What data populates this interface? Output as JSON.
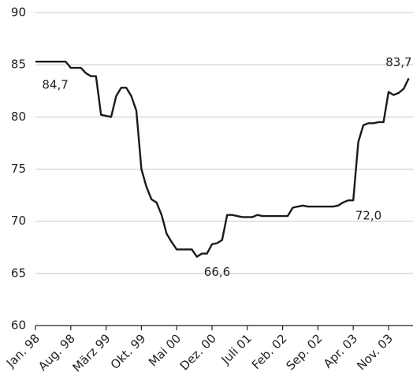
{
  "chart_data": {
    "type": "line",
    "categories": [
      "Jan. 98",
      null,
      null,
      null,
      null,
      null,
      null,
      "Aug. 98",
      null,
      null,
      null,
      null,
      null,
      null,
      "März 99",
      null,
      null,
      null,
      null,
      null,
      null,
      "Okt. 99",
      null,
      null,
      null,
      null,
      null,
      null,
      "Mai 00",
      null,
      null,
      null,
      null,
      null,
      null,
      "Dez. 00",
      null,
      null,
      null,
      null,
      null,
      null,
      "Juli 01",
      null,
      null,
      null,
      null,
      null,
      null,
      "Feb. 02",
      null,
      null,
      null,
      null,
      null,
      null,
      "Sep. 02",
      null,
      null,
      null,
      null,
      null,
      null,
      "Apr. 03",
      null,
      null,
      null,
      null,
      null,
      null,
      "Nov. 03",
      null,
      null,
      null,
      null
    ],
    "values": [
      85.3,
      85.3,
      85.3,
      85.3,
      85.3,
      85.3,
      85.3,
      84.7,
      84.7,
      84.7,
      84.2,
      83.9,
      83.9,
      80.2,
      80.1,
      80.0,
      82.0,
      82.8,
      82.8,
      82.0,
      80.6,
      75.0,
      73.3,
      72.1,
      71.8,
      70.6,
      68.8,
      68.0,
      67.3,
      67.3,
      67.3,
      67.3,
      66.6,
      66.9,
      66.9,
      67.8,
      67.9,
      68.2,
      70.6,
      70.6,
      70.5,
      70.4,
      70.4,
      70.4,
      70.6,
      70.5,
      70.5,
      70.5,
      70.5,
      70.5,
      70.5,
      71.3,
      71.4,
      71.5,
      71.4,
      71.4,
      71.4,
      71.4,
      71.4,
      71.4,
      71.5,
      71.8,
      72.0,
      72.0,
      77.6,
      79.2,
      79.4,
      79.4,
      79.5,
      79.5,
      82.4,
      82.1,
      82.3,
      82.7,
      83.7
    ],
    "value_labels": [
      null,
      null,
      null,
      null,
      null,
      null,
      null,
      "84,7",
      null,
      null,
      null,
      null,
      null,
      null,
      null,
      null,
      null,
      null,
      null,
      null,
      null,
      null,
      null,
      null,
      null,
      null,
      null,
      null,
      null,
      null,
      null,
      null,
      "66,6",
      null,
      null,
      null,
      null,
      null,
      null,
      null,
      null,
      null,
      null,
      null,
      null,
      null,
      null,
      null,
      null,
      null,
      null,
      null,
      null,
      null,
      null,
      null,
      null,
      null,
      null,
      null,
      null,
      null,
      "72,0",
      null,
      null,
      null,
      null,
      null,
      null,
      null,
      null,
      null,
      null,
      null,
      "83,7"
    ],
    "color": "#1a1a1a",
    "ylim": [
      60,
      90
    ],
    "yticks": [
      60,
      65,
      70,
      75,
      80,
      85,
      90
    ],
    "grid": true
  }
}
